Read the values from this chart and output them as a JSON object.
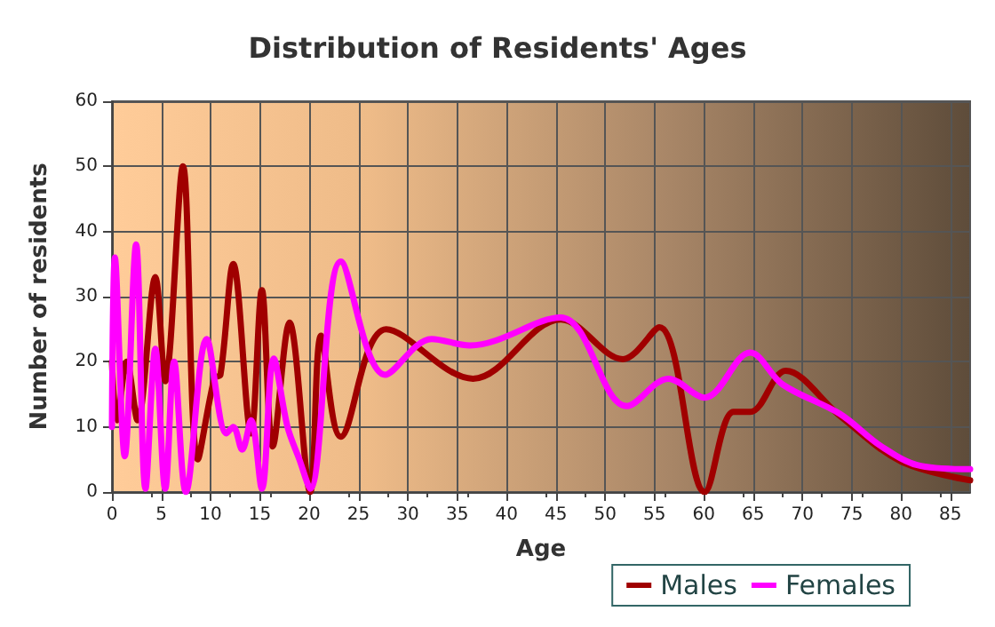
{
  "chart_data": {
    "type": "line",
    "title": "Distribution of Residents' Ages",
    "xlabel": "Age",
    "ylabel": "Number of residents",
    "xlim": [
      0,
      87
    ],
    "xticks": [
      0,
      5,
      10,
      15,
      20,
      25,
      30,
      35,
      40,
      45,
      50,
      55,
      60,
      65,
      70,
      75,
      80,
      85
    ],
    "ylim": [
      0,
      60
    ],
    "yticks": [
      0,
      10,
      20,
      30,
      40,
      50,
      60
    ],
    "grid": true,
    "legend": "bottom",
    "marker": "none",
    "line_style": "solid",
    "series": [
      {
        "name": "Males",
        "color": "#a00000",
        "x": [
          0,
          0.5,
          1.5,
          2.6,
          4.4,
          5.4,
          7.2,
          8.7,
          10.4,
          11,
          12.3,
          14.1,
          15.2,
          16.3,
          18,
          20.1,
          21.2,
          23.2,
          27.8,
          36.6,
          45.5,
          51.8,
          55.5,
          60.1,
          63,
          64.7,
          68.3,
          73.8,
          80,
          87
        ],
        "values": [
          20,
          11,
          20,
          11,
          33,
          17,
          50,
          5,
          17.5,
          18,
          35,
          9,
          31,
          7,
          26,
          0,
          24,
          8.5,
          25,
          17.4,
          26.5,
          20.4,
          25.3,
          0,
          12.3,
          12.3,
          18.6,
          11.7,
          4.7,
          1.8
        ]
      },
      {
        "name": "Females",
        "color": "#ff00ff",
        "x": [
          0,
          0.3,
          1.3,
          2.45,
          3.4,
          4.4,
          5.4,
          6.3,
          7.5,
          9.6,
          11.6,
          12.3,
          13.2,
          14.1,
          15.2,
          16.4,
          17.8,
          19,
          20.1,
          23.2,
          27.7,
          32.4,
          36.3,
          45.5,
          52.2,
          56.4,
          60.1,
          64.7,
          68,
          73.8,
          78,
          82,
          87
        ],
        "values": [
          10,
          36,
          5.5,
          38,
          0.5,
          22,
          0.5,
          20,
          0,
          23.5,
          9,
          10,
          6.5,
          11,
          0.5,
          20.5,
          10,
          5,
          0.5,
          35.4,
          18,
          23.5,
          22.5,
          26.8,
          13.2,
          17.4,
          14.5,
          21.4,
          16.5,
          12,
          7,
          4,
          3.5
        ]
      }
    ]
  }
}
